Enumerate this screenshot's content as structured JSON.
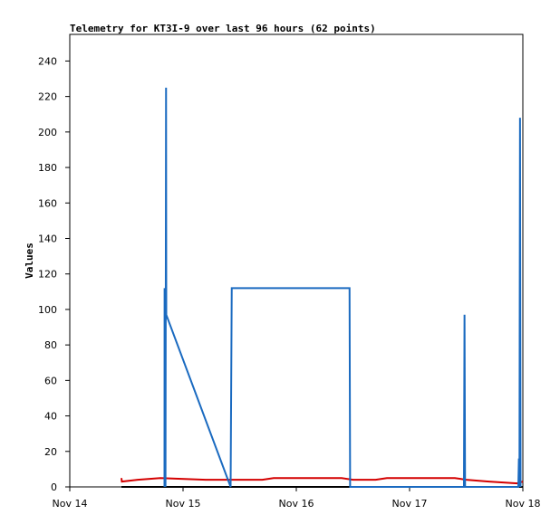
{
  "chart_data": {
    "type": "line",
    "title": "Telemetry for KT3I-9 over last 96 hours (62 points)",
    "y_label": "Values",
    "xlim": [
      14,
      18
    ],
    "xticks": [
      {
        "value": 14,
        "label": "Nov 14"
      },
      {
        "value": 15,
        "label": "Nov 15"
      },
      {
        "value": 16,
        "label": "Nov 16"
      },
      {
        "value": 17,
        "label": "Nov 17"
      },
      {
        "value": 18,
        "label": "Nov 18"
      }
    ],
    "ylim": [
      0,
      255
    ],
    "yticks": [
      0,
      20,
      40,
      60,
      80,
      100,
      120,
      140,
      160,
      180,
      200,
      220,
      240
    ],
    "grid": false,
    "series": [
      {
        "color": "#000000",
        "x": [
          14.456,
          18
        ],
        "values": [
          0,
          0
        ]
      },
      {
        "color": "#d40000",
        "x": [
          14.456,
          14.46,
          14.6,
          14.8,
          15.2,
          15.7,
          15.8,
          16.4,
          16.5,
          16.7,
          16.8,
          17.4,
          17.5,
          17.7,
          17.95,
          18
        ],
        "values": [
          5,
          3,
          4,
          5,
          4,
          4,
          5,
          5,
          4,
          4,
          5,
          5,
          4,
          3,
          2,
          3
        ]
      },
      {
        "color": "#1a6ac0",
        "x": [
          14.836,
          14.837,
          14.845,
          14.85,
          14.852,
          15.42,
          15.43,
          16.47,
          16.475,
          17.48,
          17.485,
          17.49,
          17.96,
          17.965,
          17.97,
          17.975,
          17.98
        ],
        "values": [
          0,
          112,
          0,
          225,
          97,
          0,
          112,
          112,
          0,
          0,
          97,
          0,
          0,
          16,
          0,
          208,
          0
        ]
      }
    ]
  }
}
